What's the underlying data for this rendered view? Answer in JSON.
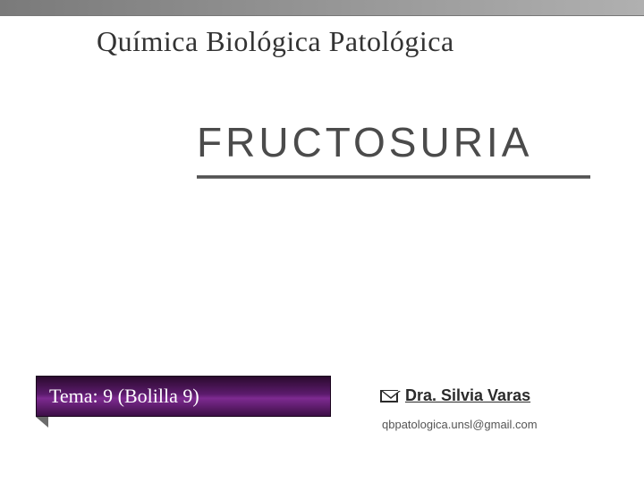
{
  "course": {
    "title": "Química Biológica Patológica"
  },
  "main": {
    "title": "FRUCTOSURIA"
  },
  "tema": {
    "label": "Tema: 9 (Bolilla 9)"
  },
  "author": {
    "name": "Dra. Silvia Varas",
    "email": "qbpatologica.unsl@gmail.com"
  },
  "colors": {
    "top_bar_start": "#7a7a7a",
    "top_bar_end": "#b0b0b0",
    "tema_gradient_top": "#2b0a2e",
    "tema_gradient_bottom": "#3d0f46",
    "text_dark": "#333333",
    "title_gray": "#4b4b4b"
  }
}
